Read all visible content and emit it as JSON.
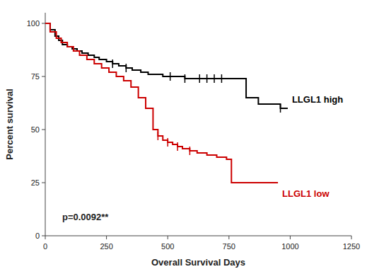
{
  "chart_data": {
    "type": "step",
    "xlabel": "Overall Survival Days",
    "ylabel": "Percent survival",
    "xlim": [
      0,
      1250
    ],
    "ylim": [
      0,
      105
    ],
    "xticks": [
      0,
      250,
      500,
      750,
      1000,
      1250
    ],
    "yticks": [
      0,
      25,
      50,
      75,
      100
    ],
    "annotations": [
      "p=0.0092**"
    ],
    "series": [
      {
        "name": "LLGL1 high",
        "color": "#000000",
        "x": [
          0,
          20,
          40,
          55,
          70,
          90,
          110,
          130,
          150,
          175,
          200,
          220,
          250,
          275,
          300,
          330,
          355,
          390,
          420,
          450,
          480,
          510,
          540,
          570,
          600,
          630,
          660,
          690,
          720,
          750,
          780,
          820,
          870,
          920,
          960,
          990
        ],
        "values": [
          100,
          97,
          94,
          92,
          90,
          89,
          88,
          87,
          86,
          85,
          84,
          83,
          82,
          81,
          80,
          79,
          78,
          77,
          76,
          76,
          75,
          75,
          75,
          74,
          74,
          74,
          74,
          74,
          74,
          74,
          74,
          65,
          62,
          62,
          60,
          60
        ],
        "censor_x": [
          275,
          330,
          510,
          570,
          630,
          660,
          690,
          720,
          960
        ],
        "censor_y": [
          81,
          79,
          75,
          74,
          74,
          74,
          74,
          74,
          60
        ]
      },
      {
        "name": "LLGL1 low",
        "color": "#cc0000",
        "x": [
          0,
          20,
          45,
          65,
          90,
          115,
          140,
          170,
          200,
          230,
          260,
          290,
          320,
          350,
          380,
          410,
          440,
          460,
          480,
          500,
          520,
          540,
          560,
          590,
          620,
          660,
          700,
          740,
          760,
          790,
          830,
          870,
          910,
          950
        ],
        "values": [
          100,
          96,
          93,
          91,
          89,
          87,
          85,
          83,
          81,
          79,
          77,
          75,
          73,
          70,
          65,
          60,
          50,
          47,
          45,
          44,
          43,
          42,
          41,
          40,
          39,
          38,
          37,
          36,
          25,
          25,
          25,
          25,
          25,
          25
        ],
        "censor_x": [
          460,
          500,
          540,
          590
        ],
        "censor_y": [
          47,
          44,
          42,
          40
        ]
      }
    ]
  }
}
